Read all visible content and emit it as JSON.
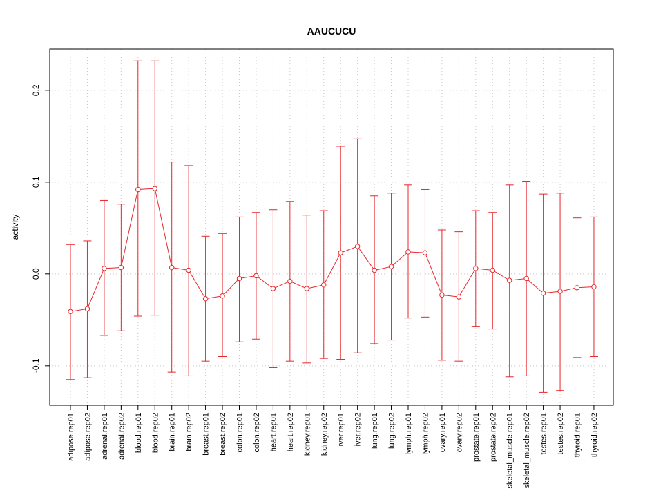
{
  "chart_data": {
    "type": "line",
    "title": "AAUCUCU",
    "xlabel": "",
    "ylabel": "activity",
    "ylim": [
      -0.143,
      0.245
    ],
    "yticks": [
      -0.1,
      0.0,
      0.1,
      0.2
    ],
    "ytick_labels": [
      "-0.1",
      "0.0",
      "0.1",
      "0.2"
    ],
    "grid": true,
    "error_bars": true,
    "color": "#e8262b",
    "categories": [
      "adipose.rep01",
      "adipose.rep02",
      "adrenal.rep01",
      "adrenal.rep02",
      "blood.rep01",
      "blood.rep02",
      "brain.rep01",
      "brain.rep02",
      "breast.rep01",
      "breast.rep02",
      "colon.rep01",
      "colon.rep02",
      "heart.rep01",
      "heart.rep02",
      "kidney.rep01",
      "kidney.rep02",
      "liver.rep01",
      "liver.rep02",
      "lung.rep01",
      "lung.rep02",
      "lymph.rep01",
      "lymph.rep02",
      "ovary.rep01",
      "ovary.rep02",
      "prostate.rep01",
      "prostate.rep02",
      "skeletal_muscle.rep01",
      "skeletal_muscle.rep02",
      "testes.rep01",
      "testes.rep02",
      "thyroid.rep01",
      "thyroid.rep02"
    ],
    "series": [
      {
        "values": [
          -0.041,
          -0.038,
          0.006,
          0.007,
          0.092,
          0.093,
          0.007,
          0.004,
          -0.027,
          -0.024,
          -0.005,
          -0.002,
          -0.016,
          -0.008,
          -0.016,
          -0.012,
          0.023,
          0.03,
          0.004,
          0.008,
          0.024,
          0.023,
          -0.023,
          -0.025,
          0.006,
          0.004,
          -0.007,
          -0.005,
          -0.021,
          -0.019,
          -0.015,
          -0.014
        ],
        "upper": [
          0.032,
          0.036,
          0.08,
          0.076,
          0.232,
          0.232,
          0.122,
          0.118,
          0.041,
          0.044,
          0.062,
          0.067,
          0.07,
          0.079,
          0.064,
          0.069,
          0.139,
          0.147,
          0.085,
          0.088,
          0.097,
          0.092,
          0.048,
          0.046,
          0.069,
          0.067,
          0.097,
          0.101,
          0.087,
          0.088,
          0.061,
          0.062
        ],
        "lower": [
          -0.115,
          -0.113,
          -0.067,
          -0.062,
          -0.046,
          -0.045,
          -0.107,
          -0.111,
          -0.095,
          -0.09,
          -0.074,
          -0.071,
          -0.102,
          -0.095,
          -0.097,
          -0.092,
          -0.093,
          -0.086,
          -0.076,
          -0.072,
          -0.048,
          -0.047,
          -0.094,
          -0.095,
          -0.057,
          -0.06,
          -0.112,
          -0.111,
          -0.129,
          -0.127,
          -0.091,
          -0.09
        ]
      }
    ]
  }
}
